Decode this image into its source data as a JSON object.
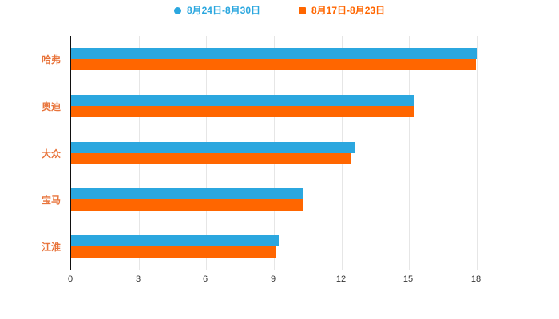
{
  "chart_data": {
    "type": "bar",
    "orientation": "horizontal",
    "title": "",
    "categories": [
      "哈弗",
      "奥迪",
      "大众",
      "宝马",
      "江淮"
    ],
    "series": [
      {
        "name": "8月24日-8月30日",
        "color": "#2ba7df",
        "marker": "circle",
        "values": [
          18.0,
          15.2,
          12.6,
          10.3,
          9.2
        ]
      },
      {
        "name": "8月17日-8月23日",
        "color": "#ff6600",
        "marker": "square",
        "values": [
          17.95,
          15.2,
          12.4,
          10.3,
          9.1
        ]
      }
    ],
    "xlim": [
      0,
      18
    ],
    "xticks": [
      0,
      3,
      6,
      9,
      12,
      15,
      18
    ],
    "xlabel": "",
    "ylabel": "",
    "grid": true,
    "legend_position": "top"
  },
  "style": {
    "category_label_color": "#e8743b",
    "tick_label_color": "#333333",
    "axis_line_color": "#111111",
    "gridline_color": "#e6e6e6",
    "background_color": "#ffffff"
  }
}
